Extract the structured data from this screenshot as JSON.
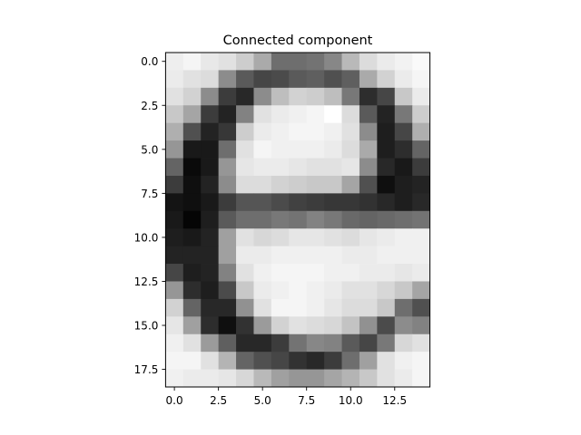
{
  "chart_data": {
    "type": "heatmap",
    "title": "Connected component",
    "xlabel": "",
    "ylabel": "",
    "colormap": "gray",
    "value_range": [
      0,
      255
    ],
    "xlim": [
      -0.5,
      14.5
    ],
    "ylim": [
      18.5,
      -0.5
    ],
    "xticks": [
      0.0,
      2.5,
      5.0,
      7.5,
      10.0,
      12.5
    ],
    "xtick_labels": [
      "0.0",
      "2.5",
      "5.0",
      "7.5",
      "10.0",
      "12.5"
    ],
    "yticks": [
      0.0,
      2.5,
      5.0,
      7.5,
      10.0,
      12.5,
      15.0,
      17.5
    ],
    "ytick_labels": [
      "0.0",
      "2.5",
      "5.0",
      "7.5",
      "10.0",
      "12.5",
      "15.0",
      "17.5"
    ],
    "grid": false,
    "values": [
      [
        238,
        245,
        232,
        225,
        205,
        170,
        110,
        110,
        115,
        135,
        185,
        220,
        235,
        242,
        250
      ],
      [
        235,
        225,
        220,
        140,
        90,
        70,
        75,
        90,
        95,
        80,
        95,
        170,
        210,
        235,
        245
      ],
      [
        225,
        210,
        140,
        60,
        40,
        140,
        190,
        210,
        205,
        190,
        120,
        45,
        70,
        200,
        235
      ],
      [
        200,
        165,
        60,
        35,
        130,
        225,
        235,
        240,
        245,
        255,
        220,
        90,
        35,
        120,
        205
      ],
      [
        175,
        80,
        35,
        55,
        205,
        235,
        240,
        245,
        245,
        240,
        225,
        140,
        30,
        70,
        175
      ],
      [
        150,
        25,
        25,
        110,
        225,
        245,
        240,
        240,
        240,
        235,
        220,
        170,
        30,
        45,
        100
      ],
      [
        100,
        10,
        25,
        150,
        230,
        235,
        235,
        230,
        225,
        225,
        230,
        140,
        40,
        25,
        60
      ],
      [
        60,
        15,
        35,
        140,
        220,
        220,
        210,
        205,
        200,
        200,
        165,
        80,
        15,
        30,
        35
      ],
      [
        20,
        15,
        25,
        60,
        85,
        85,
        75,
        65,
        60,
        55,
        55,
        50,
        40,
        30,
        40
      ],
      [
        25,
        5,
        30,
        90,
        110,
        110,
        120,
        115,
        130,
        120,
        105,
        100,
        105,
        110,
        115
      ],
      [
        30,
        25,
        35,
        160,
        225,
        215,
        220,
        230,
        230,
        225,
        220,
        230,
        235,
        240,
        240
      ],
      [
        35,
        35,
        35,
        160,
        235,
        235,
        240,
        240,
        240,
        240,
        235,
        235,
        240,
        240,
        240
      ],
      [
        70,
        30,
        35,
        130,
        225,
        240,
        245,
        245,
        245,
        240,
        240,
        235,
        235,
        230,
        235
      ],
      [
        150,
        45,
        30,
        75,
        200,
        235,
        240,
        245,
        240,
        235,
        225,
        225,
        215,
        200,
        165
      ],
      [
        210,
        100,
        40,
        40,
        145,
        225,
        245,
        245,
        240,
        230,
        220,
        220,
        200,
        110,
        80
      ],
      [
        230,
        160,
        45,
        15,
        50,
        155,
        210,
        225,
        220,
        215,
        195,
        145,
        75,
        140,
        130
      ],
      [
        240,
        225,
        155,
        95,
        40,
        40,
        60,
        115,
        135,
        130,
        90,
        70,
        120,
        215,
        225
      ],
      [
        245,
        245,
        225,
        180,
        100,
        80,
        70,
        50,
        40,
        60,
        110,
        160,
        225,
        240,
        245
      ],
      [
        240,
        235,
        235,
        230,
        215,
        185,
        160,
        150,
        150,
        165,
        180,
        200,
        225,
        235,
        245
      ]
    ]
  }
}
